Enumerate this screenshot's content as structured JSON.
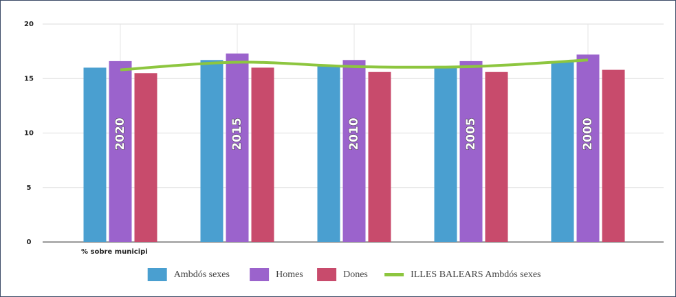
{
  "chart_data": {
    "type": "bar",
    "categories": [
      "2020",
      "2015",
      "2010",
      "2005",
      "2000"
    ],
    "x_label": "% sobre municipi",
    "series": [
      {
        "name": "Ambdós sexes",
        "color": "#4a9fd0",
        "values": [
          16.0,
          16.7,
          16.2,
          16.1,
          16.6
        ]
      },
      {
        "name": "Homes",
        "color": "#9b63cc",
        "values": [
          16.6,
          17.3,
          16.7,
          16.6,
          17.2
        ]
      },
      {
        "name": "Dones",
        "color": "#c84b6c",
        "values": [
          15.5,
          16.0,
          15.6,
          15.6,
          15.8
        ]
      },
      {
        "name": "ILLES BALEARS Ambdós sexes",
        "type": "line",
        "color": "#8dc63f",
        "values": [
          15.8,
          16.5,
          16.1,
          16.1,
          16.7
        ]
      }
    ],
    "ylim": [
      0,
      20
    ],
    "yticks": [
      0,
      5,
      10,
      15,
      20
    ],
    "grid": true,
    "legend": "bottom"
  }
}
